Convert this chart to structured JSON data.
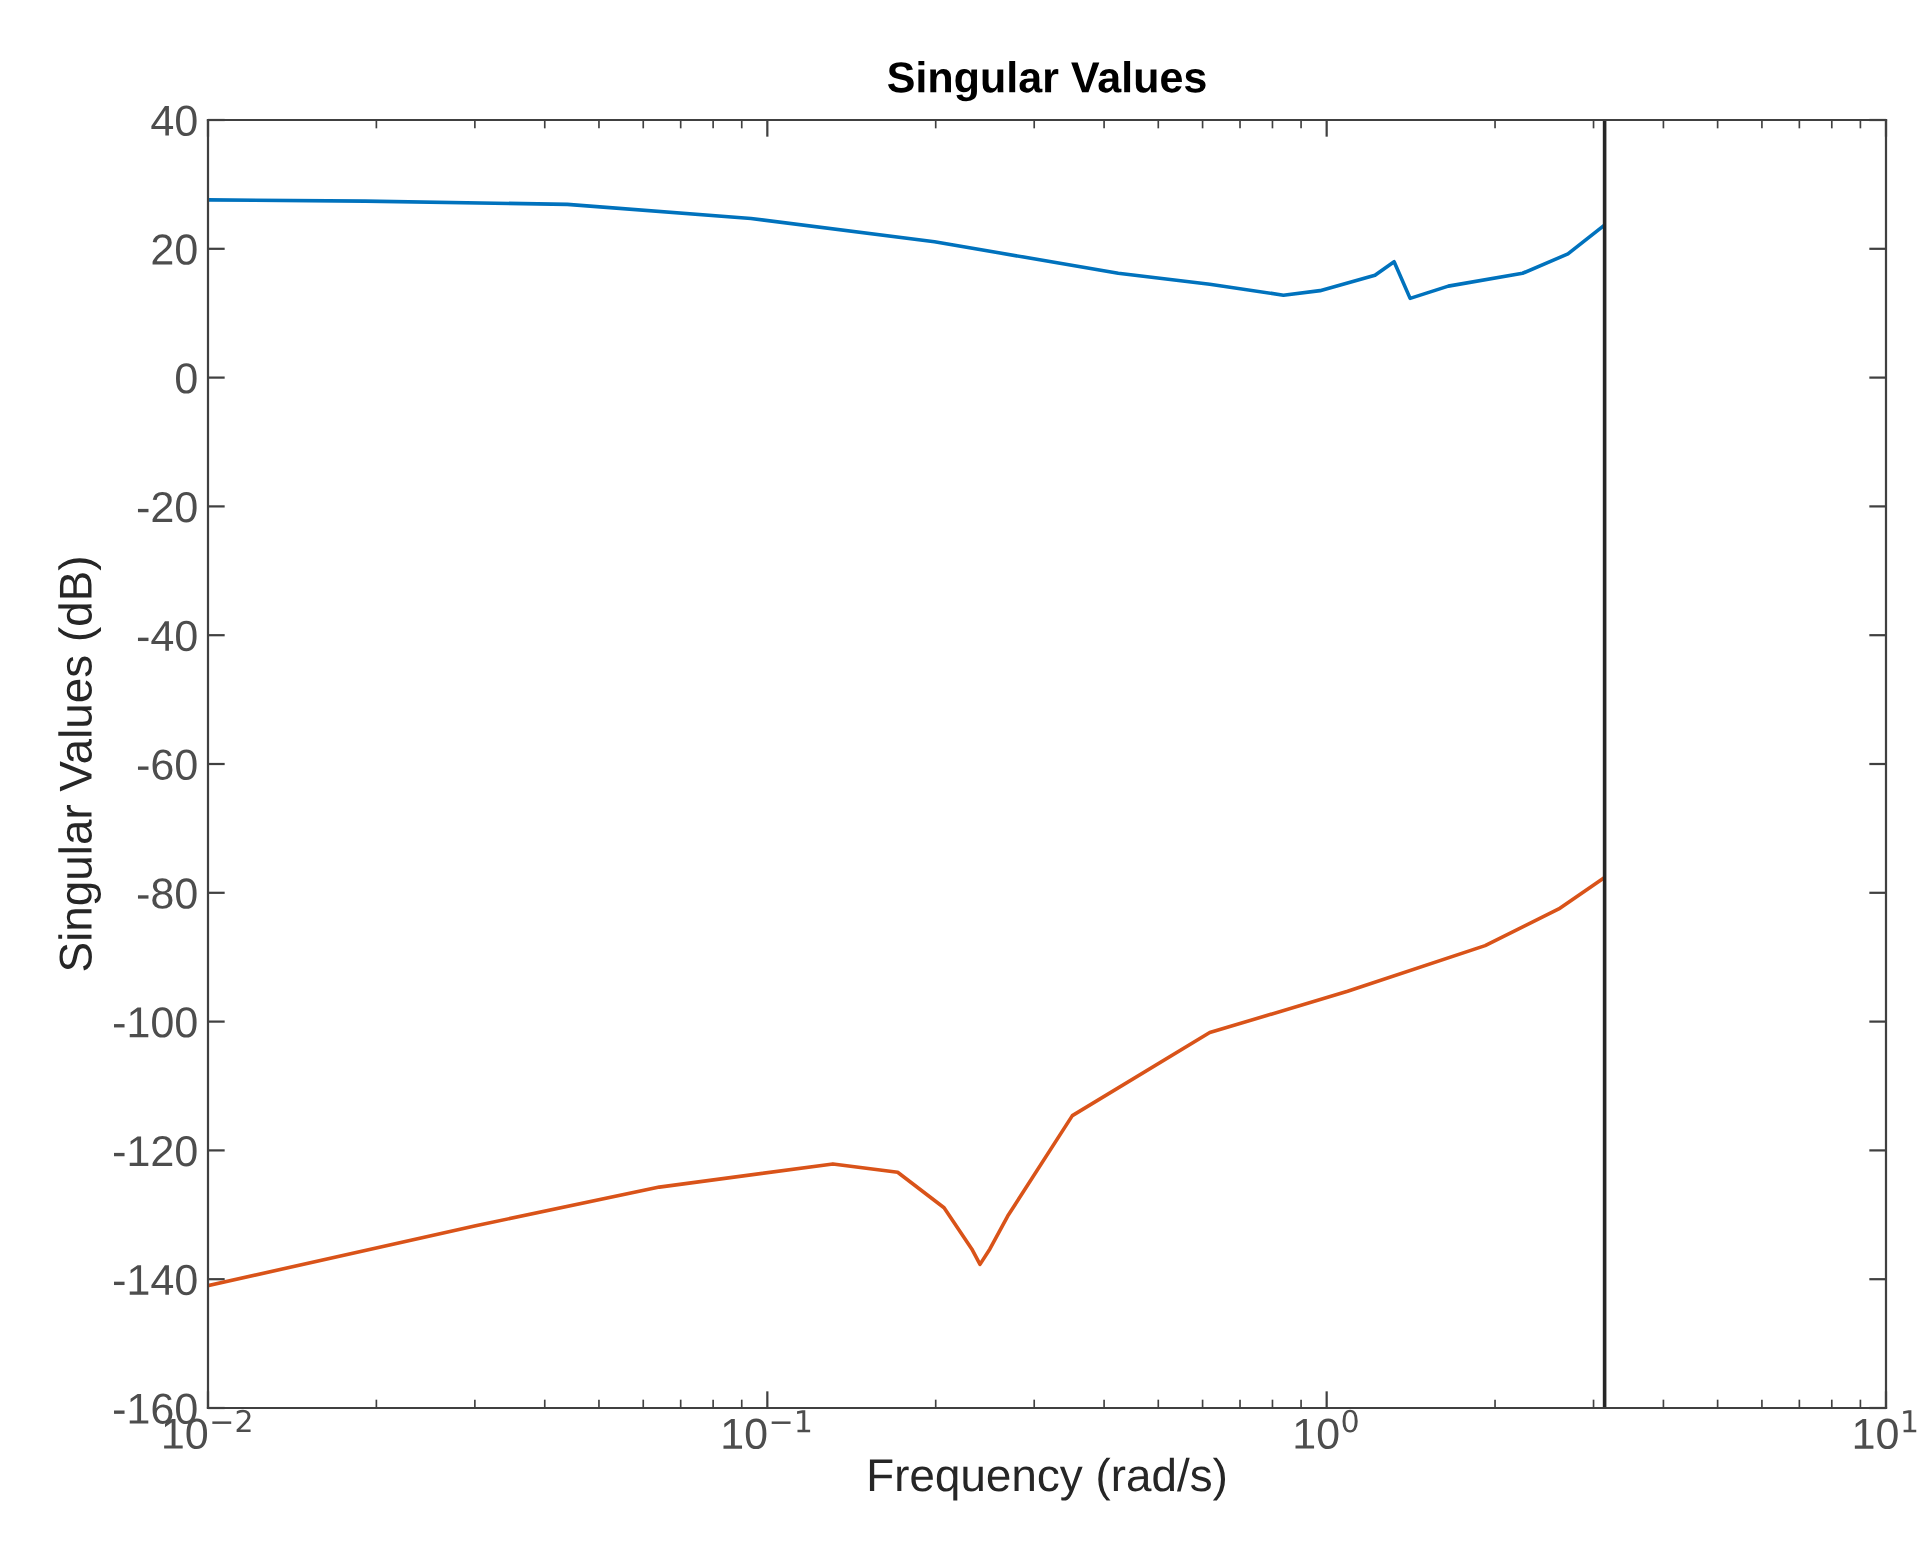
{
  "chart_data": {
    "type": "line",
    "title": "Singular Values",
    "xlabel": "Frequency (rad/s)",
    "ylabel": "Singular Values (dB)",
    "log": "x",
    "xlim": [
      0.01,
      10
    ],
    "xticks": [
      {
        "value": 0.01,
        "label": "10$^{−2}$"
      },
      {
        "value": 0.1,
        "label": "10$^{−1}$"
      },
      {
        "value": 1,
        "label": "10$^{0}$"
      },
      {
        "value": 10,
        "label": "10$^{1}$"
      }
    ],
    "ylim": [
      -160,
      40
    ],
    "yticks": [
      -160,
      -140,
      -120,
      -100,
      -80,
      -60,
      -40,
      -20,
      0,
      20,
      40
    ],
    "grid": false,
    "legend": false,
    "line_style": "solid",
    "marker": "none",
    "ref_lines": [
      {
        "axis": "x",
        "value": 3.14,
        "color": "#262626",
        "line_style": "solid"
      }
    ],
    "series": [
      {
        "color": "#0072bd",
        "x": [
          0.01,
          0.0191,
          0.0439,
          0.0935,
          0.199,
          0.424,
          0.618,
          0.837,
          0.973,
          1.22,
          1.32,
          1.41,
          1.65,
          2.24,
          2.7,
          3.12
        ],
        "values": [
          27.6,
          27.4,
          26.9,
          24.7,
          21.1,
          16.2,
          14.5,
          12.8,
          13.5,
          15.9,
          18.0,
          12.3,
          14.2,
          16.2,
          19.2,
          23.5
        ]
      },
      {
        "color": "#d95319",
        "x": [
          0.01,
          0.0301,
          0.0641,
          0.131,
          0.171,
          0.207,
          0.232,
          0.24,
          0.25,
          0.269,
          0.351,
          0.618,
          1.09,
          1.92,
          2.6,
          3.12
        ],
        "values": [
          -141,
          -131.7,
          -125.7,
          -122.1,
          -123.4,
          -128.9,
          -135.3,
          -137.7,
          -135.3,
          -130.2,
          -114.6,
          -101.7,
          -95.3,
          -88.2,
          -82.5,
          -77.8
        ]
      }
    ]
  }
}
